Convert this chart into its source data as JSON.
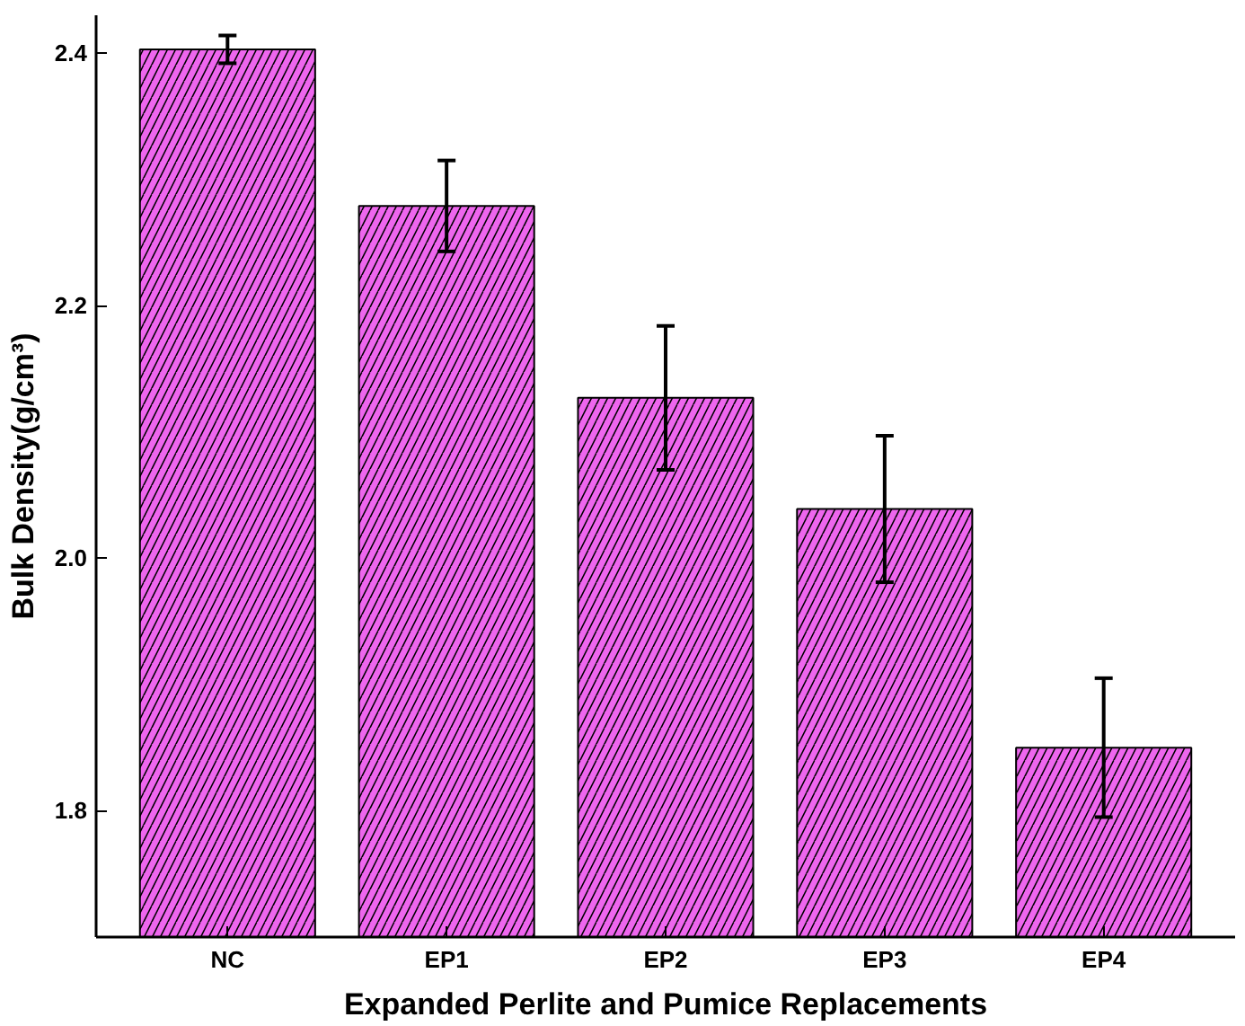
{
  "chart_data": {
    "type": "bar",
    "xlabel": "Expanded Perlite and Pumice Replacements",
    "ylabel": "Bulk Density(g/cm³)",
    "categories": [
      "NC",
      "EP1",
      "EP2",
      "EP3",
      "EP4"
    ],
    "values": [
      2.403,
      2.279,
      2.127,
      2.039,
      1.85
    ],
    "errors": [
      0.011,
      0.036,
      0.057,
      0.058,
      0.055
    ],
    "color": "#ee66ee",
    "ylim": [
      1.7,
      2.43
    ],
    "yticks": [
      1.8,
      {
        "value": 2.0,
        "label": "2.0"
      },
      2.2,
      2.4
    ],
    "grid": false
  }
}
